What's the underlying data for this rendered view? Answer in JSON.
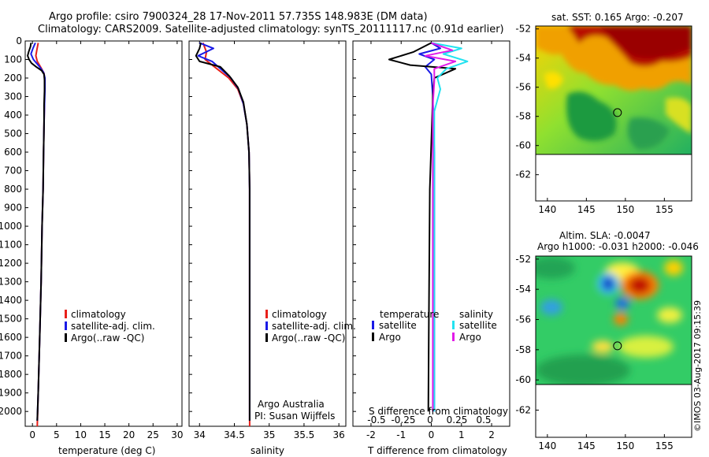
{
  "header": {
    "line1": "Argo profile: csiro 7900324_28 17-Nov-2011 57.735S 148.983E (DM data)",
    "line2": "Climatology: CARS2009. Satellite-adjusted climatology: synTS_20111117.nc (0.91d earlier)"
  },
  "colors": {
    "climatology": "#e8201a",
    "satellite": "#1a1ae6",
    "argo": "#000000",
    "cyan": "#22e2f0",
    "magenta": "#e21ae8"
  },
  "chart_data": [
    {
      "type": "line",
      "name": "temperature-profile",
      "xlabel": "temperature (deg C)",
      "xlim": [
        -1.5,
        31
      ],
      "xticks": [
        0,
        5,
        10,
        15,
        20,
        25,
        30
      ],
      "ylim": [
        0,
        2080
      ],
      "yticks": [
        0,
        100,
        200,
        300,
        400,
        500,
        600,
        700,
        800,
        900,
        1000,
        1100,
        1200,
        1300,
        1400,
        1500,
        1600,
        1700,
        1800,
        1900,
        2000
      ],
      "legend": [
        "climatology",
        "satellite-adj. clim.",
        "Argo(..raw -QC)"
      ],
      "series": [
        {
          "name": "climatology",
          "color": "#e8201a",
          "points": [
            [
              1.2,
              10
            ],
            [
              0.9,
              50
            ],
            [
              0.7,
              80
            ],
            [
              1.0,
              110
            ],
            [
              1.9,
              150
            ],
            [
              2.4,
              175
            ],
            [
              2.5,
              200
            ],
            [
              2.5,
              260
            ],
            [
              2.5,
              340
            ],
            [
              2.4,
              450
            ],
            [
              2.3,
              600
            ],
            [
              2.2,
              800
            ],
            [
              2.0,
              1000
            ],
            [
              1.8,
              1300
            ],
            [
              1.5,
              1600
            ],
            [
              1.2,
              1900
            ],
            [
              1.0,
              2080
            ]
          ]
        },
        {
          "name": "satellite",
          "color": "#1a1ae6",
          "points": [
            [
              0.6,
              10
            ],
            [
              0.1,
              40
            ],
            [
              -0.3,
              70
            ],
            [
              0.2,
              100
            ],
            [
              1.5,
              140
            ],
            [
              2.3,
              170
            ],
            [
              2.6,
              200
            ],
            [
              2.6,
              260
            ],
            [
              2.5,
              340
            ],
            [
              2.4,
              450
            ],
            [
              2.3,
              600
            ],
            [
              2.2,
              800
            ],
            [
              2.0,
              1000
            ],
            [
              1.8,
              1300
            ],
            [
              1.5,
              1600
            ],
            [
              1.2,
              1900
            ],
            [
              1.0,
              2050
            ]
          ]
        },
        {
          "name": "argo",
          "color": "#000000",
          "points": [
            [
              -0.3,
              10
            ],
            [
              -0.4,
              30
            ],
            [
              -0.8,
              60
            ],
            [
              -1.0,
              80
            ],
            [
              -0.7,
              100
            ],
            [
              -0.2,
              120
            ],
            [
              0.8,
              140
            ],
            [
              1.9,
              160
            ],
            [
              2.4,
              180
            ],
            [
              2.5,
              210
            ],
            [
              2.5,
              270
            ],
            [
              2.4,
              350
            ],
            [
              2.4,
              450
            ],
            [
              2.3,
              600
            ],
            [
              2.2,
              800
            ],
            [
              2.0,
              1000
            ],
            [
              1.8,
              1300
            ],
            [
              1.5,
              1600
            ],
            [
              1.2,
              1900
            ],
            [
              1.0,
              2050
            ]
          ]
        }
      ]
    },
    {
      "type": "line",
      "name": "salinity-profile",
      "xlabel": "salinity",
      "xlim": [
        33.85,
        36.1
      ],
      "xticks": [
        34,
        34.5,
        35,
        35.5,
        36
      ],
      "ylim": [
        0,
        2080
      ],
      "legend": [
        "climatology",
        "satellite-adj. clim.",
        "Argo(..raw -QC)"
      ],
      "annotations": [
        "Argo Australia",
        "PI: Susan Wijffels"
      ],
      "series": [
        {
          "name": "climatology",
          "color": "#e8201a",
          "points": [
            [
              34.05,
              10
            ],
            [
              34.1,
              60
            ],
            [
              34.08,
              100
            ],
            [
              34.25,
              150
            ],
            [
              34.42,
              200
            ],
            [
              34.55,
              260
            ],
            [
              34.63,
              340
            ],
            [
              34.68,
              450
            ],
            [
              34.71,
              600
            ],
            [
              34.72,
              800
            ],
            [
              34.72,
              1100
            ],
            [
              34.72,
              1400
            ],
            [
              34.72,
              1800
            ],
            [
              34.72,
              2080
            ]
          ]
        },
        {
          "name": "satellite",
          "color": "#1a1ae6",
          "points": [
            [
              34.0,
              10
            ],
            [
              34.2,
              40
            ],
            [
              33.98,
              80
            ],
            [
              34.18,
              110
            ],
            [
              34.3,
              150
            ],
            [
              34.45,
              200
            ],
            [
              34.56,
              260
            ],
            [
              34.63,
              340
            ],
            [
              34.68,
              450
            ],
            [
              34.71,
              600
            ],
            [
              34.72,
              800
            ],
            [
              34.72,
              1100
            ],
            [
              34.72,
              1400
            ],
            [
              34.72,
              1800
            ],
            [
              34.72,
              2050
            ]
          ]
        },
        {
          "name": "argo",
          "color": "#000000",
          "points": [
            [
              34.02,
              10
            ],
            [
              34.0,
              40
            ],
            [
              33.95,
              80
            ],
            [
              34.0,
              110
            ],
            [
              34.3,
              140
            ],
            [
              34.43,
              190
            ],
            [
              34.55,
              250
            ],
            [
              34.63,
              330
            ],
            [
              34.68,
              450
            ],
            [
              34.71,
              600
            ],
            [
              34.72,
              800
            ],
            [
              34.72,
              1100
            ],
            [
              34.72,
              1400
            ],
            [
              34.72,
              1800
            ],
            [
              34.72,
              2050
            ]
          ]
        }
      ]
    },
    {
      "type": "line",
      "name": "difference-profile",
      "xlabel": "T difference from climatology",
      "xlim": [
        -2.6,
        2.6
      ],
      "xticks": [
        -2,
        -1,
        0,
        1,
        2
      ],
      "topaxis_label": "S difference from climatology",
      "topaxis_ticks": [
        "-0.5",
        "-0.25",
        "0",
        "0.25",
        "0.5"
      ],
      "ylim": [
        0,
        2080
      ],
      "legend_temperature": {
        "title": "temperature",
        "items": [
          "satellite",
          "Argo"
        ]
      },
      "legend_salinity": {
        "title": "salinity",
        "items": [
          "satellite",
          "Argo"
        ]
      },
      "series": [
        {
          "name": "T satellite",
          "color": "#1a1ae6",
          "points": [
            [
              0,
              10
            ],
            [
              0.3,
              40
            ],
            [
              -0.4,
              70
            ],
            [
              0.1,
              100
            ],
            [
              -0.2,
              140
            ],
            [
              0,
              180
            ],
            [
              0.05,
              300
            ],
            [
              0.1,
              600
            ],
            [
              0.1,
              1200
            ],
            [
              0.1,
              2000
            ]
          ]
        },
        {
          "name": "T argo",
          "color": "#000000",
          "points": [
            [
              0,
              10
            ],
            [
              -0.6,
              60
            ],
            [
              -1.4,
              100
            ],
            [
              -0.7,
              130
            ],
            [
              0.8,
              150
            ],
            [
              0.1,
              200
            ],
            [
              0.05,
              300
            ],
            [
              -0.05,
              800
            ],
            [
              -0.08,
              1500
            ],
            [
              -0.1,
              2000
            ]
          ]
        },
        {
          "name": "S satellite",
          "color": "#22e2f0",
          "points": [
            [
              0,
              10
            ],
            [
              1.0,
              40
            ],
            [
              0.4,
              70
            ],
            [
              1.2,
              110
            ],
            [
              0.5,
              150
            ],
            [
              0.2,
              200
            ],
            [
              0.3,
              260
            ],
            [
              0.1,
              380
            ],
            [
              0.1,
              800
            ],
            [
              0.1,
              1400
            ],
            [
              0.1,
              2000
            ]
          ]
        },
        {
          "name": "S argo",
          "color": "#e21ae8",
          "points": [
            [
              0,
              10
            ],
            [
              0.7,
              50
            ],
            [
              -0.2,
              80
            ],
            [
              0.8,
              110
            ],
            [
              0.1,
              150
            ],
            [
              0.1,
              220
            ],
            [
              0.05,
              350
            ],
            [
              0.05,
              900
            ],
            [
              0.05,
              2000
            ]
          ]
        }
      ]
    },
    {
      "type": "heatmap",
      "name": "sst-map",
      "title": "sat. SST: 0.165 Argo: -0.207",
      "xticks": [
        "140",
        "145",
        "150",
        "155"
      ],
      "yticks": [
        "-52",
        "-54",
        "-56",
        "-58",
        "-60",
        "-62"
      ],
      "xlim": [
        138.5,
        158.5
      ],
      "ylim": [
        -63.8,
        -51.8
      ],
      "marker": {
        "lon": 148.98,
        "lat": -57.74
      }
    },
    {
      "type": "heatmap",
      "name": "sla-map",
      "title": "Altim. SLA: -0.0047",
      "subtitle": "Argo h1000: -0.031 h2000: -0.046",
      "xticks": [
        "140",
        "145",
        "150",
        "155"
      ],
      "yticks": [
        "-52",
        "-54",
        "-56",
        "-58",
        "-60",
        "-62"
      ],
      "xlim": [
        138.5,
        158.5
      ],
      "ylim": [
        -63.8,
        -51.8
      ],
      "marker": {
        "lon": 148.98,
        "lat": -57.74
      }
    }
  ],
  "watermark": "©IMOS 03-Aug-2017 09:15:39"
}
